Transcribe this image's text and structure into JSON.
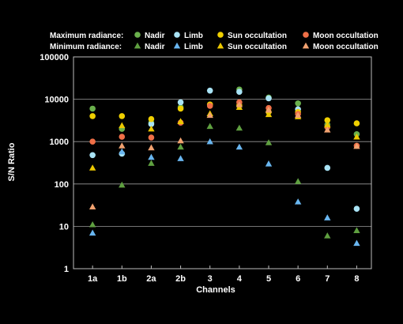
{
  "chart_data": {
    "type": "scatter",
    "xlabel": "Channels",
    "ylabel": "S/N Ratio",
    "yscale": "log",
    "ylim": [
      1,
      100000
    ],
    "y_ticks": [
      1,
      10,
      100,
      1000,
      10000,
      100000
    ],
    "y_tick_labels": [
      "1",
      "10",
      "100",
      "1000",
      "10000",
      "100000"
    ],
    "grid": "horizontal",
    "categories": [
      "1a",
      "1b",
      "2a",
      "2b",
      "3",
      "4",
      "5",
      "6",
      "7",
      "8"
    ],
    "legend": {
      "placement": "top-left",
      "row_labels": [
        "Maximum radiance:",
        "Minimum radiance:"
      ]
    },
    "series": [
      {
        "name": "Nadir",
        "group": "Maximum radiance:",
        "marker": "circle",
        "color": "#6ab04c",
        "values": [
          6000,
          2000,
          2800,
          6500,
          7500,
          17000,
          11000,
          8000,
          2500,
          1500
        ]
      },
      {
        "name": "Limb",
        "group": "Maximum radiance:",
        "marker": "circle",
        "color": "#a9e3f5",
        "values": [
          480,
          520,
          2600,
          8500,
          16000,
          15000,
          10500,
          5800,
          240,
          26
        ]
      },
      {
        "name": "Sun occultation",
        "group": "Maximum radiance:",
        "marker": "circle",
        "color": "#f0d000",
        "values": [
          4000,
          4000,
          3400,
          6000,
          7500,
          7200,
          5000,
          5000,
          3200,
          2700
        ]
      },
      {
        "name": "Moon  occultation",
        "group": "Maximum radiance:",
        "marker": "circle",
        "color": "#ef6f47",
        "values": [
          1000,
          1300,
          1250,
          2800,
          7000,
          8500,
          6200,
          4500,
          2200,
          800
        ]
      },
      {
        "name": "Nadir",
        "group": "Minimum radiance:",
        "marker": "triangle",
        "color": "#5fa040",
        "values": [
          11,
          95,
          310,
          750,
          2300,
          2100,
          950,
          115,
          6,
          8
        ]
      },
      {
        "name": "Limb",
        "group": "Minimum radiance:",
        "marker": "triangle",
        "color": "#69b6f0",
        "values": [
          7,
          580,
          430,
          400,
          1000,
          750,
          300,
          38,
          16,
          4
        ]
      },
      {
        "name": "Sun occultation",
        "group": "Minimum radiance:",
        "marker": "triangle",
        "color": "#ecc800",
        "values": [
          240,
          2400,
          2000,
          3000,
          4600,
          6500,
          4400,
          3900,
          2500,
          1300
        ]
      },
      {
        "name": "Moon  occultation",
        "group": "Minimum radiance:",
        "marker": "triangle",
        "color": "#f2a270",
        "values": [
          29,
          800,
          720,
          1050,
          4200,
          7500,
          5600,
          4200,
          1900,
          780
        ]
      }
    ]
  }
}
